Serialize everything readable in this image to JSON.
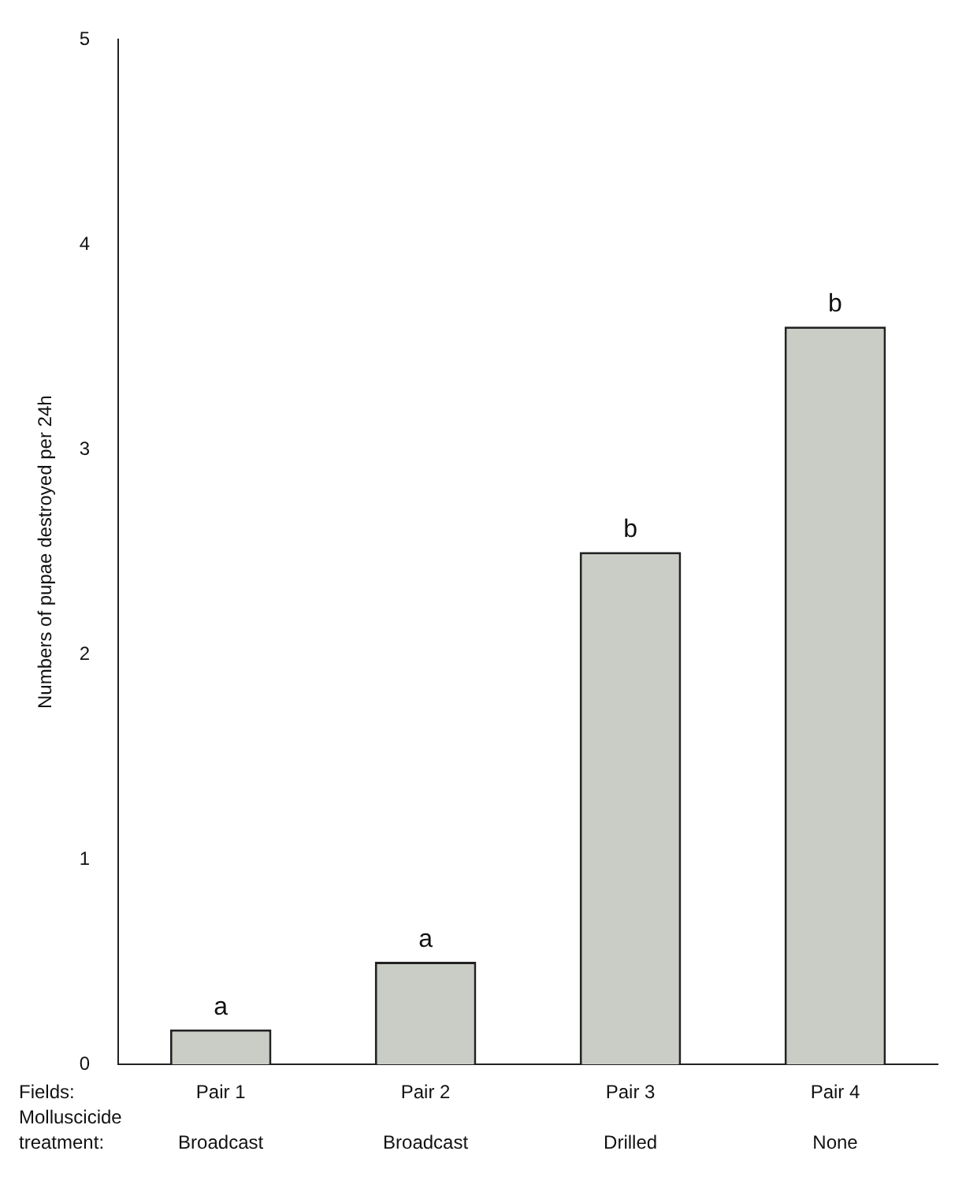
{
  "chart_data": {
    "type": "bar",
    "ylabel": "Numbers of pupae destroyed per 24h",
    "categories": [
      "Pair 1\nBroadcast",
      "Pair 2\nBroadcast",
      "Pair 3\nDrilled",
      "Pair 4\nNone"
    ],
    "values": [
      0.17,
      0.5,
      2.5,
      3.6
    ],
    "color": "#c9cdc5",
    "ylim": [
      0,
      5
    ],
    "yticks": [
      0,
      1,
      2,
      3,
      4,
      5
    ],
    "grid": false,
    "annotations": [
      "Fields:",
      "Molluscicide treatment:",
      {
        "text": "a",
        "x": "Pair 1\nBroadcast",
        "y": 0.17
      },
      {
        "text": "a",
        "x": "Pair 2\nBroadcast",
        "y": 0.5
      },
      {
        "text": "b",
        "x": "Pair 3\nDrilled",
        "y": 2.5
      },
      {
        "text": "b",
        "x": "Pair 4\nNone",
        "y": 3.6
      }
    ]
  }
}
